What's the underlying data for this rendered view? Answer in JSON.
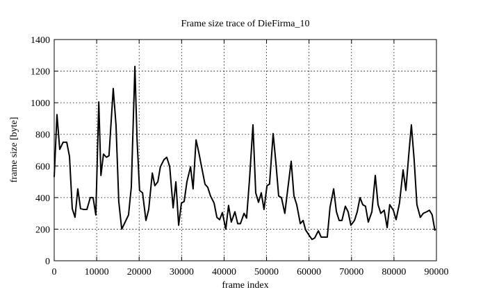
{
  "chart_data": {
    "type": "line",
    "title": "Frame size trace of DieFirma_10",
    "xlabel": "frame index",
    "ylabel": "frame size [byte]",
    "xlim": [
      0,
      90000
    ],
    "xticks": [
      0,
      10000,
      20000,
      30000,
      40000,
      50000,
      60000,
      70000,
      80000,
      90000
    ],
    "ylim": [
      0,
      1400
    ],
    "yticks": [
      0,
      200,
      400,
      600,
      800,
      1000,
      1200,
      1400
    ],
    "grid": true,
    "x": [
      0,
      650,
      1300,
      2100,
      2950,
      3600,
      4250,
      4900,
      5550,
      6200,
      6900,
      7700,
      8500,
      9150,
      9800,
      10500,
      11000,
      11600,
      12300,
      12900,
      13900,
      14550,
      15200,
      15900,
      16700,
      17500,
      18150,
      19000,
      19500,
      20100,
      20800,
      21600,
      22250,
      23100,
      23700,
      24400,
      25000,
      25850,
      26500,
      27200,
      28000,
      28650,
      29300,
      29950,
      30600,
      31250,
      32100,
      32700,
      33400,
      34050,
      34700,
      35500,
      36150,
      36800,
      37650,
      38300,
      38950,
      39600,
      40400,
      41050,
      41700,
      42550,
      43200,
      43850,
      44700,
      45300,
      46000,
      46800,
      47450,
      48100,
      48750,
      49400,
      50100,
      50700,
      51550,
      52200,
      52850,
      53500,
      54300,
      55000,
      55800,
      56450,
      57100,
      57950,
      58600,
      59200,
      60050,
      60700,
      61350,
      62200,
      62850,
      63500,
      64300,
      64950,
      65800,
      66450,
      67100,
      67750,
      68550,
      69200,
      69850,
      70700,
      71350,
      72000,
      72650,
      73300,
      73950,
      74800,
      75600,
      76250,
      76900,
      77700,
      78400,
      79000,
      79850,
      80500,
      81300,
      82150,
      82800,
      83450,
      84100,
      84750,
      85400,
      86200,
      86900,
      87700,
      88350,
      89000,
      89650
    ],
    "series": [
      {
        "color": "#000000",
        "values": [
          530,
          925,
          705,
          750,
          750,
          660,
          330,
          275,
          455,
          330,
          325,
          325,
          400,
          400,
          290,
          1005,
          540,
          675,
          655,
          665,
          1090,
          860,
          375,
          200,
          245,
          290,
          465,
          1230,
          770,
          445,
          430,
          255,
          325,
          555,
          475,
          500,
          595,
          640,
          655,
          595,
          335,
          500,
          225,
          365,
          375,
          500,
          595,
          455,
          765,
          685,
          595,
          485,
          465,
          410,
          365,
          275,
          260,
          305,
          200,
          350,
          245,
          310,
          235,
          235,
          300,
          270,
          520,
          860,
          430,
          370,
          430,
          325,
          475,
          485,
          805,
          620,
          410,
          400,
          300,
          455,
          630,
          410,
          355,
          235,
          255,
          195,
          160,
          135,
          145,
          190,
          150,
          150,
          150,
          340,
          455,
          310,
          255,
          255,
          345,
          310,
          225,
          255,
          310,
          400,
          355,
          345,
          245,
          310,
          540,
          355,
          300,
          320,
          210,
          355,
          320,
          260,
          365,
          575,
          445,
          660,
          860,
          640,
          355,
          275,
          300,
          310,
          320,
          290,
          190
        ]
      }
    ]
  }
}
